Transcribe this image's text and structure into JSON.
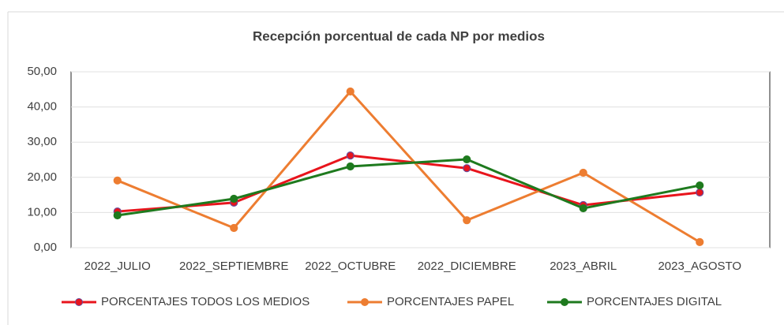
{
  "chart_data": {
    "type": "line",
    "title": "Recepción porcentual de cada NP por medios",
    "categories": [
      "2022_JULIO",
      "2022_SEPTIEMBRE",
      "2022_OCTUBRE",
      "2022_DICIEMBRE",
      "2023_ABRIL",
      "2023_AGOSTO"
    ],
    "series": [
      {
        "name": "PORCENTAJES TODOS LOS MEDIOS",
        "color": "#e8141c",
        "values": [
          10.3,
          12.8,
          26.2,
          22.6,
          12.1,
          15.7
        ]
      },
      {
        "name": "PORCENTAJES PAPEL",
        "color": "#ed7d31",
        "values": [
          19.1,
          5.6,
          44.4,
          7.8,
          21.3,
          1.6
        ]
      },
      {
        "name": "PORCENTAJES DIGITAL",
        "color": "#1e7a1e",
        "values": [
          9.2,
          13.9,
          23.1,
          25.1,
          11.2,
          17.7
        ]
      }
    ],
    "ylim": [
      0,
      50
    ],
    "yticks": [
      {
        "value": 0,
        "label": "0,00"
      },
      {
        "value": 10,
        "label": "10,00"
      },
      {
        "value": 20,
        "label": "20,00"
      },
      {
        "value": 30,
        "label": "30,00"
      },
      {
        "value": 40,
        "label": "40,00"
      },
      {
        "value": 50,
        "label": "50,00"
      }
    ],
    "grid": true,
    "legend": "bottom"
  }
}
